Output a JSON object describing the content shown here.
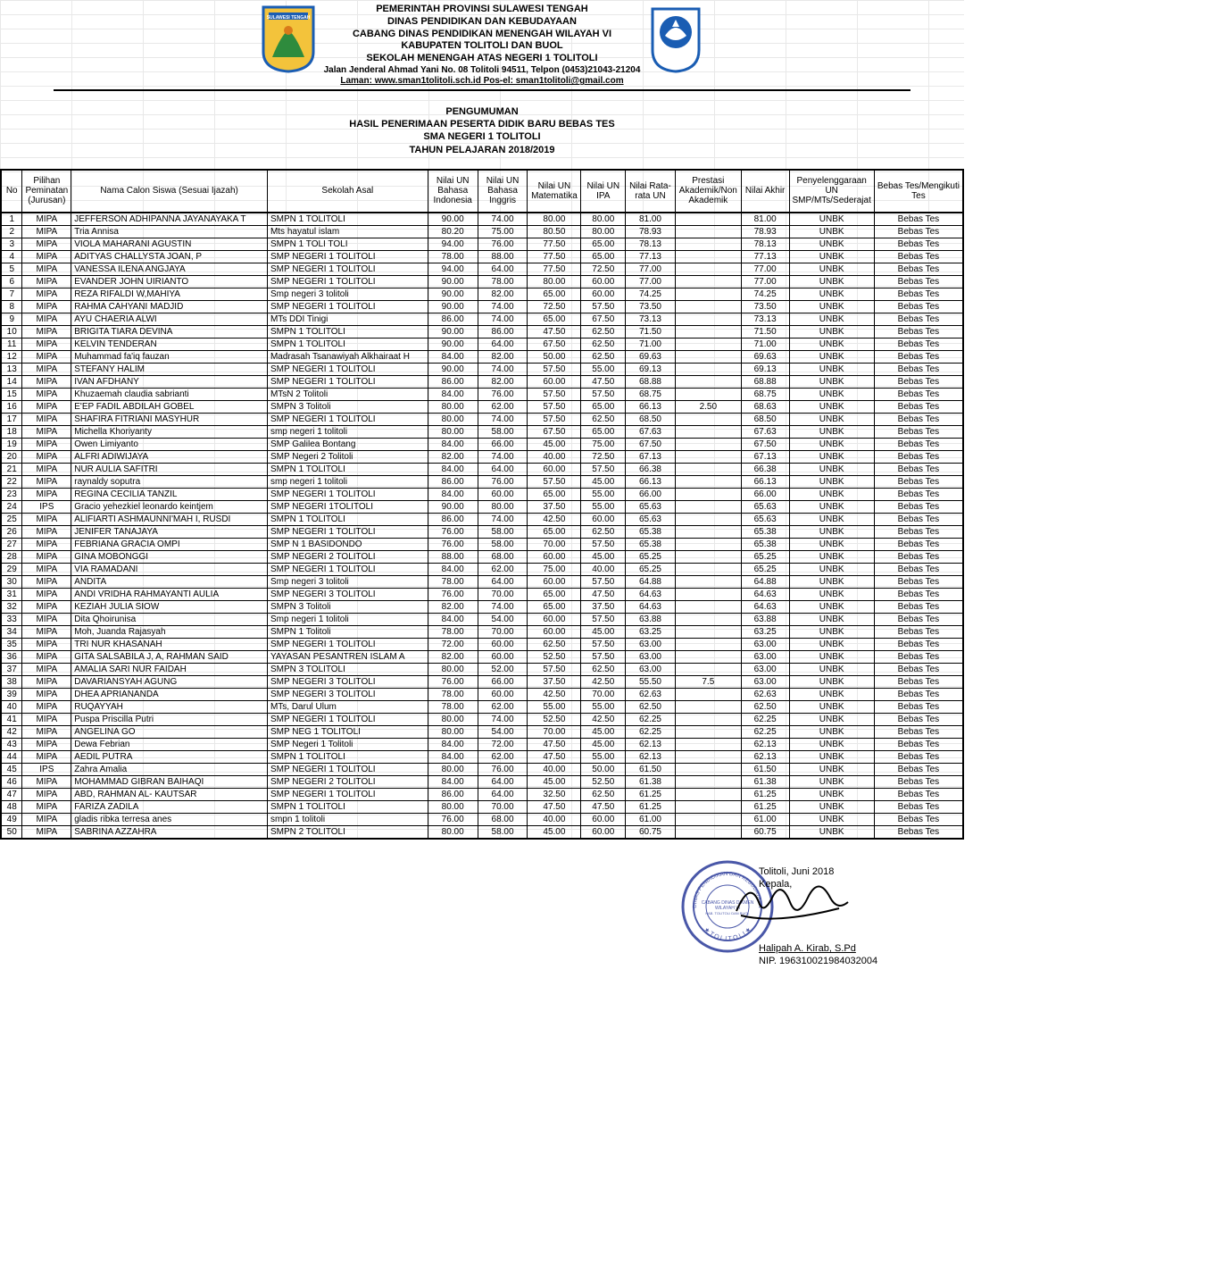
{
  "header": {
    "line1": "PEMERINTAH PROVINSI SULAWESI TENGAH",
    "line2": "DINAS PENDIDIKAN DAN KEBUDAYAAN",
    "line3": "CABANG DINAS PENDIDIKAN MENENGAH WILAYAH VI",
    "line4": "KABUPATEN TOLITOLI DAN BUOL",
    "line5": "SEKOLAH MENENGAH ATAS NEGERI 1 TOLITOLI",
    "address": "Jalan Jenderal Ahmad Yani No. 08 Tolitoli 94511, Telpon (0453)21043-21204",
    "web_label": "Laman:  www.sman1tolitoli.sch.id Pos-el: sman1tolitoli@gmail.com"
  },
  "announce": {
    "l1": "PENGUMUMAN",
    "l2": "HASIL PENERIMAAN PESERTA DIDIK BARU BEBAS TES",
    "l3": "SMA NEGERI 1 TOLITOLI",
    "l4": "TAHUN PELAJARAN 2018/2019"
  },
  "columns": [
    "No",
    "Pilihan Peminatan (Jurusan)",
    "Nama Calon Siswa (Sesuai Ijazah)",
    "Sekolah Asal",
    "Nilai UN Bahasa Indonesia",
    "Nilai UN Bahasa Inggris",
    "Nilai UN Matematika",
    "Nilai UN IPA",
    "Nilai Rata-rata UN",
    "Prestasi Akademik/Non Akademik",
    "Nilai Akhir",
    "Penyelenggaraan UN SMP/MTs/Sederajat",
    "Bebas Tes/Mengikuti Tes"
  ],
  "col_widths": [
    "24px",
    "54px",
    "220px",
    "180px",
    "56px",
    "56px",
    "60px",
    "50px",
    "56px",
    "74px",
    "54px",
    "86px",
    "100px"
  ],
  "rows": [
    [
      1,
      "MIPA",
      "JEFFERSON ADHIPANNA JAYANAYAKA T",
      "SMPN 1 TOLITOLI",
      "90.00",
      "74.00",
      "80.00",
      "80.00",
      "81.00",
      "",
      "81.00",
      "UNBK",
      "Bebas Tes"
    ],
    [
      2,
      "MIPA",
      "Tria Annisa",
      "Mts hayatul islam",
      "80.20",
      "75.00",
      "80.50",
      "80.00",
      "78.93",
      "",
      "78.93",
      "UNBK",
      "Bebas Tes"
    ],
    [
      3,
      "MIPA",
      "VIOLA MAHARANI AGUSTIN",
      "SMPN 1 TOLI TOLI",
      "94.00",
      "76.00",
      "77.50",
      "65.00",
      "78.13",
      "",
      "78.13",
      "UNBK",
      "Bebas Tes"
    ],
    [
      4,
      "MIPA",
      "ADITYAS CHALLYSTA JOAN, P",
      "SMP NEGERI 1 TOLITOLI",
      "78.00",
      "88.00",
      "77.50",
      "65.00",
      "77.13",
      "",
      "77.13",
      "UNBK",
      "Bebas Tes"
    ],
    [
      5,
      "MIPA",
      "VANESSA ILENA ANGJAYA",
      "SMP NEGERI 1 TOLITOLI",
      "94.00",
      "64.00",
      "77.50",
      "72.50",
      "77.00",
      "",
      "77.00",
      "UNBK",
      "Bebas Tes"
    ],
    [
      6,
      "MIPA",
      "EVANDER JOHN UIRIANTO",
      "SMP NEGERI 1 TOLITOLI",
      "90.00",
      "78.00",
      "80.00",
      "60.00",
      "77.00",
      "",
      "77.00",
      "UNBK",
      "Bebas Tes"
    ],
    [
      7,
      "MIPA",
      "REZA RIFALDI W,MAHIYA",
      "Smp negeri 3 tolitoli",
      "90.00",
      "82.00",
      "65.00",
      "60.00",
      "74.25",
      "",
      "74.25",
      "UNBK",
      "Bebas Tes"
    ],
    [
      8,
      "MIPA",
      "RAHMA CAHYANI MADJID",
      "SMP NEGERI 1 TOLITOLI",
      "90.00",
      "74.00",
      "72.50",
      "57.50",
      "73.50",
      "",
      "73.50",
      "UNBK",
      "Bebas Tes"
    ],
    [
      9,
      "MIPA",
      "AYU CHAERIA ALWI",
      "MTs DDI Tinigi",
      "86.00",
      "74.00",
      "65.00",
      "67.50",
      "73.13",
      "",
      "73.13",
      "UNBK",
      "Bebas Tes"
    ],
    [
      10,
      "MIPA",
      "BRIGITA TIARA DEVINA",
      "SMPN 1 TOLITOLI",
      "90.00",
      "86.00",
      "47.50",
      "62.50",
      "71.50",
      "",
      "71.50",
      "UNBK",
      "Bebas Tes"
    ],
    [
      11,
      "MIPA",
      "KELVIN TENDERAN",
      "SMPN 1 TOLITOLI",
      "90.00",
      "64.00",
      "67.50",
      "62.50",
      "71.00",
      "",
      "71.00",
      "UNBK",
      "Bebas Tes"
    ],
    [
      12,
      "MIPA",
      "Muhammad fa'iq fauzan",
      "Madrasah Tsanawiyah Alkhairaat H",
      "84.00",
      "82.00",
      "50.00",
      "62.50",
      "69.63",
      "",
      "69.63",
      "UNBK",
      "Bebas Tes"
    ],
    [
      13,
      "MIPA",
      "STEFANY HALIM",
      "SMP NEGERI 1 TOLITOLI",
      "90.00",
      "74.00",
      "57.50",
      "55.00",
      "69.13",
      "",
      "69.13",
      "UNBK",
      "Bebas Tes"
    ],
    [
      14,
      "MIPA",
      "IVAN AFDHANY",
      "SMP NEGERI 1 TOLITOLI",
      "86.00",
      "82.00",
      "60.00",
      "47.50",
      "68.88",
      "",
      "68.88",
      "UNBK",
      "Bebas Tes"
    ],
    [
      15,
      "MIPA",
      "Khuzaemah claudia sabrianti",
      "MTsN 2 Tolitoli",
      "84.00",
      "76.00",
      "57.50",
      "57.50",
      "68.75",
      "",
      "68.75",
      "UNBK",
      "Bebas Tes"
    ],
    [
      16,
      "MIPA",
      "E'EP FADIL ABDILAH GOBEL",
      "SMPN 3 Tolitoli",
      "80.00",
      "62.00",
      "57.50",
      "65.00",
      "66.13",
      "2.50",
      "68.63",
      "UNBK",
      "Bebas Tes"
    ],
    [
      17,
      "MIPA",
      "SHAFIRA FITRIANI MASYHUR",
      "SMP NEGERI 1 TOLITOLI",
      "80.00",
      "74.00",
      "57.50",
      "62.50",
      "68.50",
      "",
      "68.50",
      "UNBK",
      "Bebas Tes"
    ],
    [
      18,
      "MIPA",
      "Michella Khoriyanty",
      "smp negeri 1 tolitoli",
      "80.00",
      "58.00",
      "67.50",
      "65.00",
      "67.63",
      "",
      "67.63",
      "UNBK",
      "Bebas Tes"
    ],
    [
      19,
      "MIPA",
      "Owen Limiyanto",
      "SMP Galilea Bontang",
      "84.00",
      "66.00",
      "45.00",
      "75.00",
      "67.50",
      "",
      "67.50",
      "UNBK",
      "Bebas Tes"
    ],
    [
      20,
      "MIPA",
      "ALFRI ADIWIJAYA",
      "SMP Negeri 2 Tolitoli",
      "82.00",
      "74.00",
      "40.00",
      "72.50",
      "67.13",
      "",
      "67.13",
      "UNBK",
      "Bebas Tes"
    ],
    [
      21,
      "MIPA",
      "NUR AULIA SAFITRI",
      "SMPN 1 TOLITOLI",
      "84.00",
      "64.00",
      "60.00",
      "57.50",
      "66.38",
      "",
      "66.38",
      "UNBK",
      "Bebas Tes"
    ],
    [
      22,
      "MIPA",
      "raynaldy soputra",
      "smp negeri 1 tolitoli",
      "86.00",
      "76.00",
      "57.50",
      "45.00",
      "66.13",
      "",
      "66.13",
      "UNBK",
      "Bebas Tes"
    ],
    [
      23,
      "MIPA",
      "REGINA CECILIA TANZIL",
      "SMP NEGERI 1 TOLITOLI",
      "84.00",
      "60.00",
      "65.00",
      "55.00",
      "66.00",
      "",
      "66.00",
      "UNBK",
      "Bebas Tes"
    ],
    [
      24,
      "IPS",
      "Gracio yehezkiel leonardo keintjem",
      "SMP NEGERI 1TOLITOLI",
      "90.00",
      "80.00",
      "37.50",
      "55.00",
      "65.63",
      "",
      "65.63",
      "UNBK",
      "Bebas Tes"
    ],
    [
      25,
      "MIPA",
      "ALIFIARTI ASHMAUNNI'MAH I, RUSDI",
      "SMPN 1 TOLITOLI",
      "86.00",
      "74.00",
      "42.50",
      "60.00",
      "65.63",
      "",
      "65.63",
      "UNBK",
      "Bebas Tes"
    ],
    [
      26,
      "MIPA",
      "JENIFER TANAJAYA",
      "SMP NEGERI 1 TOLITOLI",
      "76.00",
      "58.00",
      "65.00",
      "62.50",
      "65.38",
      "",
      "65.38",
      "UNBK",
      "Bebas Tes"
    ],
    [
      27,
      "MIPA",
      "FEBRIANA GRACIA OMPI",
      "SMP N 1 BASIDONDO",
      "76.00",
      "58.00",
      "70.00",
      "57.50",
      "65.38",
      "",
      "65.38",
      "UNBK",
      "Bebas Tes"
    ],
    [
      28,
      "MIPA",
      "GINA MOBONGGI",
      "SMP NEGERI 2 TOLITOLI",
      "88.00",
      "68.00",
      "60.00",
      "45.00",
      "65.25",
      "",
      "65.25",
      "UNBK",
      "Bebas Tes"
    ],
    [
      29,
      "MIPA",
      "VIA RAMADANI",
      "SMP NEGERI 1 TOLITOLI",
      "84.00",
      "62.00",
      "75.00",
      "40.00",
      "65.25",
      "",
      "65.25",
      "UNBK",
      "Bebas Tes"
    ],
    [
      30,
      "MIPA",
      "ANDITA",
      "Smp negeri 3 tolitoli",
      "78.00",
      "64.00",
      "60.00",
      "57.50",
      "64.88",
      "",
      "64.88",
      "UNBK",
      "Bebas Tes"
    ],
    [
      31,
      "MIPA",
      "ANDI VRIDHA RAHMAYANTI AULIA",
      "SMP NEGERI 3 TOLITOLI",
      "76.00",
      "70.00",
      "65.00",
      "47.50",
      "64.63",
      "",
      "64.63",
      "UNBK",
      "Bebas Tes"
    ],
    [
      32,
      "MIPA",
      "KEZIAH JULIA SIOW",
      "SMPN 3 Tolitoli",
      "82.00",
      "74.00",
      "65.00",
      "37.50",
      "64.63",
      "",
      "64.63",
      "UNBK",
      "Bebas Tes"
    ],
    [
      33,
      "MIPA",
      "Dita Qhoirunisa",
      "Smp negeri 1 tolitoli",
      "84.00",
      "54.00",
      "60.00",
      "57.50",
      "63.88",
      "",
      "63.88",
      "UNBK",
      "Bebas Tes"
    ],
    [
      34,
      "MIPA",
      "Moh, Juanda Rajasyah",
      "SMPN 1 Tolitoli",
      "78.00",
      "70.00",
      "60.00",
      "45.00",
      "63.25",
      "",
      "63.25",
      "UNBK",
      "Bebas Tes"
    ],
    [
      35,
      "MIPA",
      "TRI NUR KHASANAH",
      "SMP NEGERI 1 TOLITOLI",
      "72.00",
      "60.00",
      "62.50",
      "57.50",
      "63.00",
      "",
      "63.00",
      "UNBK",
      "Bebas Tes"
    ],
    [
      36,
      "MIPA",
      "GITA SALSABILA J, A, RAHMAN SAID",
      "YAYASAN PESANTREN ISLAM A",
      "82.00",
      "60.00",
      "52.50",
      "57.50",
      "63.00",
      "",
      "63.00",
      "UNBK",
      "Bebas Tes"
    ],
    [
      37,
      "MIPA",
      "AMALIA SARI NUR FAIDAH",
      "SMPN 3 TOLITOLI",
      "80.00",
      "52.00",
      "57.50",
      "62.50",
      "63.00",
      "",
      "63.00",
      "UNBK",
      "Bebas Tes"
    ],
    [
      38,
      "MIPA",
      "DAVARIANSYAH AGUNG",
      "SMP NEGERI 3 TOLITOLI",
      "76.00",
      "66.00",
      "37.50",
      "42.50",
      "55.50",
      "7.5",
      "63.00",
      "UNBK",
      "Bebas Tes"
    ],
    [
      39,
      "MIPA",
      "DHEA APRIANANDA",
      "SMP NEGERI 3 TOLITOLI",
      "78.00",
      "60.00",
      "42.50",
      "70.00",
      "62.63",
      "",
      "62.63",
      "UNBK",
      "Bebas Tes"
    ],
    [
      40,
      "MIPA",
      "RUQAYYAH",
      "MTs,  Darul Ulum",
      "78.00",
      "62.00",
      "55.00",
      "55.00",
      "62.50",
      "",
      "62.50",
      "UNBK",
      "Bebas Tes"
    ],
    [
      41,
      "MIPA",
      "Puspa Priscilla Putri",
      "SMP NEGERI 1 TOLITOLI",
      "80.00",
      "74.00",
      "52.50",
      "42.50",
      "62.25",
      "",
      "62.25",
      "UNBK",
      "Bebas Tes"
    ],
    [
      42,
      "MIPA",
      "ANGELINA GO",
      "SMP NEG 1 TOLITOLI",
      "80.00",
      "54.00",
      "70.00",
      "45.00",
      "62.25",
      "",
      "62.25",
      "UNBK",
      "Bebas Tes"
    ],
    [
      43,
      "MIPA",
      "Dewa Febrian",
      "SMP Negeri 1 Tolitoli",
      "84.00",
      "72.00",
      "47.50",
      "45.00",
      "62.13",
      "",
      "62.13",
      "UNBK",
      "Bebas Tes"
    ],
    [
      44,
      "MIPA",
      "AEDIL PUTRA",
      "SMPN 1 TOLITOLI",
      "84.00",
      "62.00",
      "47.50",
      "55.00",
      "62.13",
      "",
      "62.13",
      "UNBK",
      "Bebas Tes"
    ],
    [
      45,
      "IPS",
      "Zahra Amalia",
      "SMP NEGERI 1 TOLITOLI",
      "80.00",
      "76.00",
      "40.00",
      "50.00",
      "61.50",
      "",
      "61.50",
      "UNBK",
      "Bebas Tes"
    ],
    [
      46,
      "MIPA",
      "MOHAMMAD GIBRAN BAIHAQI",
      "SMP NEGERI 2 TOLITOLI",
      "84.00",
      "64.00",
      "45.00",
      "52.50",
      "61.38",
      "",
      "61.38",
      "UNBK",
      "Bebas Tes"
    ],
    [
      47,
      "MIPA",
      "ABD, RAHMAN AL- KAUTSAR",
      "SMP NEGERI 1 TOLITOLI",
      "86.00",
      "64.00",
      "32.50",
      "62.50",
      "61.25",
      "",
      "61.25",
      "UNBK",
      "Bebas Tes"
    ],
    [
      48,
      "MIPA",
      "FARIZA ZADILA",
      "SMPN 1 TOLITOLI",
      "80.00",
      "70.00",
      "47.50",
      "47.50",
      "61.25",
      "",
      "61.25",
      "UNBK",
      "Bebas Tes"
    ],
    [
      49,
      "MIPA",
      "gladis ribka terresa anes",
      "smpn 1 tolitoli",
      "76.00",
      "68.00",
      "40.00",
      "60.00",
      "61.00",
      "",
      "61.00",
      "UNBK",
      "Bebas Tes"
    ],
    [
      50,
      "MIPA",
      "SABRINA AZZAHRA",
      "SMPN 2 TOLITOLI",
      "80.00",
      "58.00",
      "45.00",
      "60.00",
      "60.75",
      "",
      "60.75",
      "UNBK",
      "Bebas Tes"
    ]
  ],
  "signature": {
    "date": "Tolitoli,    Juni 2018",
    "role": "Kepala,",
    "name": "Halipah A. Kirab, S.Pd",
    "nip": "NIP. 196310021984032004"
  },
  "colors": {
    "stamp": "#2a3a9a",
    "logo_blue": "#1a5db3",
    "logo_yellow": "#f3c33b",
    "logo_green": "#2e8b3d",
    "logo_orange": "#d97a1a"
  }
}
